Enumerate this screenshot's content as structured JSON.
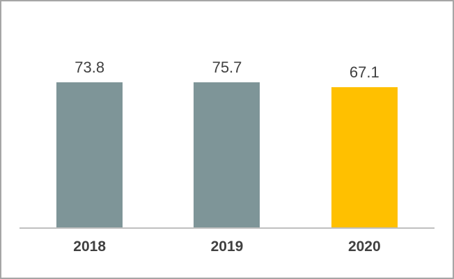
{
  "frame": {
    "background": "#ffffff",
    "border_color": "#a6a6a6"
  },
  "chart_data": {
    "type": "bar",
    "title": "",
    "xlabel": "",
    "ylabel": "",
    "categories": [
      "2018",
      "2019",
      "2020"
    ],
    "values": [
      73.8,
      75.7,
      67.1
    ],
    "value_labels": [
      "73.8",
      "75.7",
      "67.1"
    ],
    "ylim": [
      0,
      80
    ],
    "grid": false,
    "legend": false,
    "bar_colors": [
      "#7E9598",
      "#7E9598",
      "#FFC000"
    ],
    "axis_line_color": "#BFBFBF",
    "label_color": "#404040"
  }
}
